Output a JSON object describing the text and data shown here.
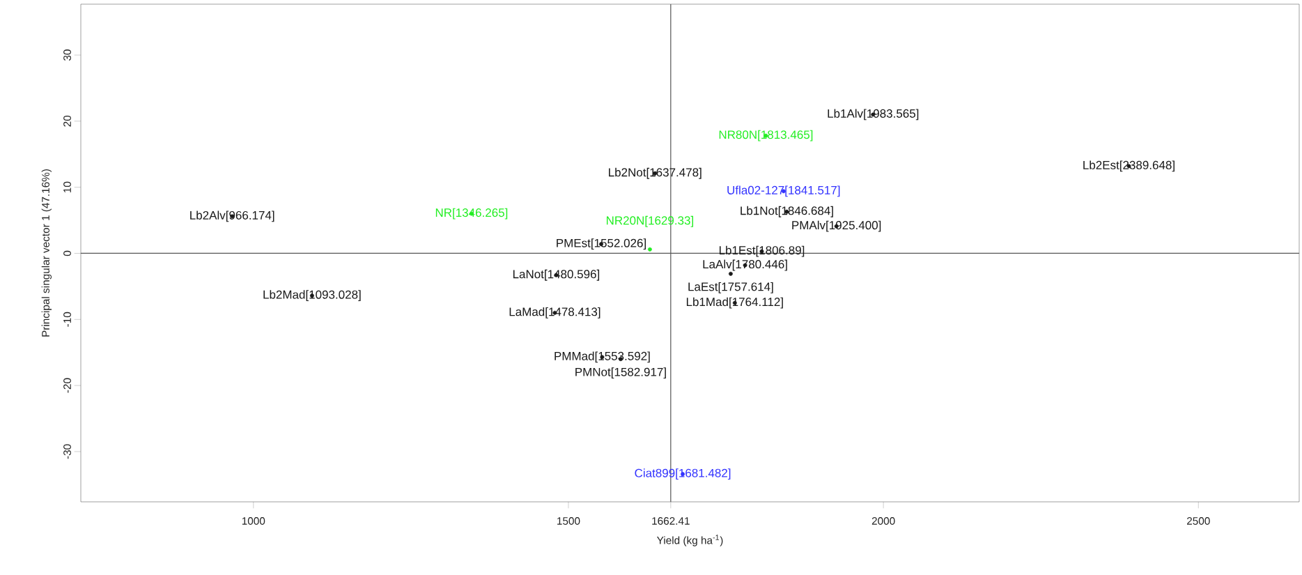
{
  "chart_data": {
    "type": "scatter",
    "xlabel": "Yield (kg ha$^{-1}$)",
    "ylabel": "Principal singular vector 1 (47.16%)",
    "xlim": [
      726,
      2660
    ],
    "ylim": [
      -37.6,
      37.7
    ],
    "xticks": [
      1000,
      1500,
      1662.41,
      2000,
      2500
    ],
    "yticks": [
      -30,
      -20,
      -10,
      0,
      10,
      20,
      30
    ],
    "marker": "none",
    "grid": false,
    "ref_lines": [
      {
        "axis": "x",
        "value": 1662.41,
        "color": "#555555"
      },
      {
        "axis": "y",
        "value": 0,
        "color": "#555555"
      }
    ],
    "series": [
      {
        "color": "#1a1a1a",
        "x": [
          1983.565,
          2389.648,
          1637.478,
          966.174,
          1846.684,
          1925.4,
          1552.026,
          1806.89,
          1780.446,
          1757.614,
          1480.596,
          1093.028,
          1764.112,
          1478.413,
          1553.592,
          1582.917
        ],
        "values": [
          21.0,
          13.2,
          12.1,
          5.6,
          6.3,
          4.1,
          1.4,
          0.3,
          -1.8,
          -3.1,
          -3.3,
          -6.4,
          -7.5,
          -9.0,
          -15.7,
          -16.0
        ]
      },
      {
        "color": "#22ee22",
        "x": [
          1813.465,
          1346.265,
          1629.33
        ],
        "values": [
          17.8,
          6.0,
          0.6
        ]
      },
      {
        "color": "#3333ff",
        "x": [
          1841.517,
          1681.482
        ],
        "values": [
          9.4,
          -33.4
        ]
      }
    ],
    "annotations": [
      {
        "text": "Lb1Alv[1983.565]",
        "x": 1983.565,
        "y": 21.0
      },
      {
        "text": "Lb2Est[2389.648]",
        "x": 2389.648,
        "y": 13.2
      },
      {
        "text": "Lb2Not[1637.478]",
        "x": 1637.478,
        "y": 12.1
      },
      {
        "text": "Lb2Alv[966.174]",
        "x": 966.174,
        "y": 5.6
      },
      {
        "text": "Lb1Not[1846.684]",
        "x": 1846.684,
        "y": 6.3
      },
      {
        "text": "PMAlv[1925.400]",
        "x": 1925.4,
        "y": 4.1
      },
      {
        "text": "PMEst[1552.026]",
        "x": 1552.026,
        "y": 1.4
      },
      {
        "text": "Lb1Est[1806.89]",
        "x": 1806.89,
        "y": 0.3
      },
      {
        "text": "LaAlv[1780.446]",
        "x": 1780.446,
        "y": -1.8
      },
      {
        "text": "LaEst[1757.614]",
        "x": 1757.614,
        "y": -3.1
      },
      {
        "text": "LaNot[1480.596]",
        "x": 1480.596,
        "y": -3.3
      },
      {
        "text": "Lb2Mad[1093.028]",
        "x": 1093.028,
        "y": -6.4
      },
      {
        "text": "Lb1Mad[1764.112]",
        "x": 1764.112,
        "y": -7.5
      },
      {
        "text": "LaMad[1478.413]",
        "x": 1478.413,
        "y": -9.0
      },
      {
        "text": "PMMad[1553.592]",
        "x": 1553.592,
        "y": -15.7
      },
      {
        "text": "PMNot[1582.917]",
        "x": 1582.917,
        "y": -16.0
      },
      {
        "text": "NR80N[1813.465]",
        "x": 1813.465,
        "y": 17.8
      },
      {
        "text": "NR[1346.265]",
        "x": 1346.265,
        "y": 6.0
      },
      {
        "text": "NR20N[1629.33]",
        "x": 1629.33,
        "y": 0.6
      },
      {
        "text": "Ufla02-127[1841.517]",
        "x": 1841.517,
        "y": 9.4
      },
      {
        "text": "Ciat899[1681.482]",
        "x": 1681.482,
        "y": -33.4
      }
    ]
  }
}
